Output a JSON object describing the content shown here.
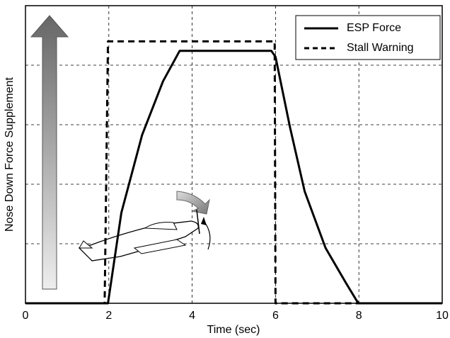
{
  "chart_data": {
    "type": "line",
    "xlabel": "Time (sec)",
    "ylabel": "Nose Down Force Supplement",
    "xlim": [
      0,
      10
    ],
    "xticks": [
      0,
      2,
      4,
      6,
      8,
      10
    ],
    "ylim": [
      0,
      5
    ],
    "yticks": [
      0,
      1,
      2,
      3,
      4,
      5
    ],
    "grid": true,
    "legend": "upper right",
    "series": [
      {
        "name": "ESP Force",
        "color": "#000000",
        "style": "solid",
        "x": [
          0,
          1.98,
          2.05,
          2.3,
          2.8,
          3.3,
          3.7,
          5.9,
          6.0,
          6.35,
          6.7,
          7.2,
          7.7,
          7.95,
          8.0,
          10
        ],
        "values": [
          0,
          0,
          0.33,
          1.52,
          2.83,
          3.73,
          4.24,
          4.24,
          4.14,
          2.95,
          1.88,
          0.93,
          0.33,
          0.04,
          0,
          0
        ]
      },
      {
        "name": "Stall Warning",
        "color": "#000000",
        "style": "dashed",
        "x": [
          0,
          1.9,
          1.98,
          5.98,
          6.0,
          10
        ],
        "values": [
          0,
          0,
          4.4,
          4.4,
          0,
          0
        ]
      }
    ]
  }
}
